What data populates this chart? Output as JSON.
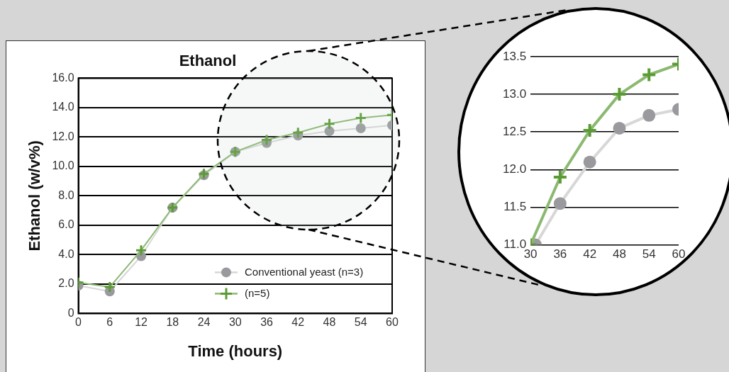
{
  "chart_data": [
    {
      "type": "line",
      "title": "Ethanol",
      "xlabel": "Time (hours)",
      "ylabel": "Ethanol (w/v%)",
      "x": [
        0,
        6,
        12,
        18,
        24,
        30,
        36,
        42,
        48,
        54,
        60
      ],
      "series": [
        {
          "name": "Conventional yeast (n=3)",
          "color": "#9a9a9e",
          "marker": "circle",
          "values": [
            1.9,
            1.5,
            3.9,
            7.2,
            9.4,
            11.0,
            11.6,
            12.1,
            12.4,
            12.6,
            12.8
          ]
        },
        {
          "name": "(n=5)",
          "color": "#5b9b35",
          "marker": "cross",
          "values": [
            2.1,
            1.8,
            4.3,
            7.2,
            9.5,
            11.0,
            11.8,
            12.3,
            12.9,
            13.3,
            13.5
          ]
        }
      ],
      "xlim": [
        0,
        60
      ],
      "xticks": [
        0,
        6,
        12,
        18,
        24,
        30,
        36,
        42,
        48,
        54,
        60
      ],
      "ylim": [
        0,
        16
      ],
      "yticks": [
        0,
        {
          "value": 2,
          "label": "2.0"
        },
        {
          "value": 4,
          "label": "4.0"
        },
        {
          "value": 6,
          "label": "6.0"
        },
        {
          "value": 8,
          "label": "8.0"
        },
        {
          "value": 10,
          "label": "10.0"
        },
        {
          "value": 12,
          "label": "12.0"
        },
        {
          "value": 14,
          "label": "14.0"
        },
        {
          "value": 16,
          "label": "16.0"
        }
      ],
      "grid": "y",
      "legend": "bottom right"
    },
    {
      "type": "line",
      "x": [
        30,
        36,
        42,
        48,
        54,
        60
      ],
      "series": [
        {
          "color": "#9a9a9e",
          "marker": "circle",
          "x": [
            31,
            36,
            42,
            48,
            54,
            60
          ],
          "values": [
            11.0,
            11.55,
            12.1,
            12.55,
            12.72,
            12.8
          ]
        },
        {
          "color": "#5b9b35",
          "marker": "cross",
          "values": [
            11.0,
            11.9,
            12.52,
            13.0,
            13.26,
            13.4
          ]
        }
      ],
      "xlim": [
        30,
        60
      ],
      "xticks": [
        30,
        36,
        42,
        48,
        54,
        60
      ],
      "ylim": [
        11,
        13.5
      ],
      "yticks": [
        {
          "value": 11,
          "label": "11.0"
        },
        {
          "value": 11.5,
          "label": "11.5"
        },
        {
          "value": 12,
          "label": "12.0"
        },
        {
          "value": 12.5,
          "label": "12.5"
        },
        {
          "value": 13,
          "label": "13.0"
        },
        {
          "value": 13.5,
          "label": "13.5"
        }
      ],
      "grid": "y"
    }
  ]
}
